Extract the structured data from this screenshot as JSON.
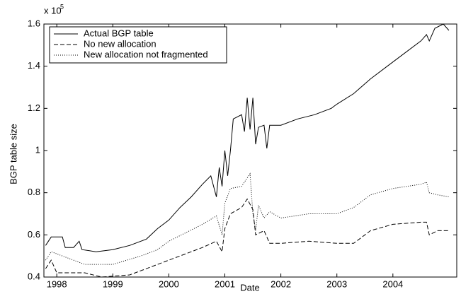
{
  "chart_data": {
    "type": "line",
    "xlabel": "Date",
    "ylabel": "BGP table size",
    "y_multiplier": "x 10",
    "y_multiplier_exponent": "5",
    "xlim": [
      1997.77,
      2005.14
    ],
    "ylim": [
      0.4,
      1.6
    ],
    "xticks": [
      1998,
      1999,
      2000,
      2001,
      2002,
      2003,
      2004
    ],
    "yticks": [
      0.4,
      0.6,
      0.8,
      1,
      1.2,
      1.4,
      1.6
    ],
    "legend": "upper left",
    "series": [
      {
        "name": "Actual BGP table",
        "color": "#000000",
        "linestyle": "solid",
        "x": [
          1997.8,
          1997.9,
          1998.1,
          1998.15,
          1998.3,
          1998.4,
          1998.45,
          1998.7,
          1999.0,
          1999.3,
          1999.6,
          1999.8,
          2000.0,
          2000.2,
          2000.4,
          2000.6,
          2000.75,
          2000.85,
          2000.9,
          2000.95,
          2001.0,
          2001.05,
          2001.1,
          2001.15,
          2001.3,
          2001.35,
          2001.4,
          2001.45,
          2001.5,
          2001.55,
          2001.6,
          2001.7,
          2001.75,
          2001.8,
          2002.0,
          2002.3,
          2002.6,
          2002.9,
          2003.0,
          2003.3,
          2003.6,
          2003.9,
          2004.2,
          2004.5,
          2004.6,
          2004.65,
          2004.75,
          2004.9,
          2005.0
        ],
        "values": [
          0.55,
          0.59,
          0.59,
          0.54,
          0.54,
          0.57,
          0.53,
          0.52,
          0.53,
          0.55,
          0.58,
          0.63,
          0.67,
          0.73,
          0.78,
          0.84,
          0.88,
          0.78,
          0.92,
          0.83,
          1.0,
          0.88,
          1.0,
          1.15,
          1.17,
          1.09,
          1.25,
          1.1,
          1.25,
          1.03,
          1.11,
          1.12,
          1.01,
          1.12,
          1.12,
          1.15,
          1.17,
          1.2,
          1.22,
          1.27,
          1.34,
          1.4,
          1.46,
          1.52,
          1.55,
          1.52,
          1.58,
          1.6,
          1.57
        ]
      },
      {
        "name": "No new allocation",
        "color": "#000000",
        "linestyle": "dashed",
        "x": [
          1997.8,
          1997.9,
          1998.0,
          1998.3,
          1998.5,
          1998.8,
          1999.3,
          1999.7,
          2000.0,
          2000.3,
          2000.6,
          2000.85,
          2000.95,
          2001.0,
          2001.1,
          2001.3,
          2001.4,
          2001.5,
          2001.55,
          2001.7,
          2001.8,
          2002.0,
          2002.5,
          2003.0,
          2003.3,
          2003.6,
          2004.0,
          2004.5,
          2004.6,
          2004.65,
          2004.8,
          2005.0
        ],
        "values": [
          0.44,
          0.48,
          0.42,
          0.42,
          0.42,
          0.4,
          0.41,
          0.45,
          0.48,
          0.51,
          0.54,
          0.57,
          0.52,
          0.63,
          0.7,
          0.73,
          0.77,
          0.72,
          0.6,
          0.62,
          0.56,
          0.56,
          0.57,
          0.56,
          0.56,
          0.62,
          0.65,
          0.66,
          0.66,
          0.6,
          0.62,
          0.62
        ]
      },
      {
        "name": "New allocation not fragmented",
        "color": "#000000",
        "linestyle": "dotted",
        "x": [
          1997.8,
          1997.9,
          1998.1,
          1998.5,
          1999.0,
          1999.5,
          1999.8,
          2000.0,
          2000.3,
          2000.6,
          2000.85,
          2000.95,
          2001.0,
          2001.1,
          2001.3,
          2001.45,
          2001.5,
          2001.55,
          2001.6,
          2001.7,
          2001.8,
          2002.0,
          2002.5,
          2003.0,
          2003.3,
          2003.6,
          2004.0,
          2004.5,
          2004.6,
          2004.65,
          2004.8,
          2005.0
        ],
        "values": [
          0.48,
          0.52,
          0.5,
          0.46,
          0.46,
          0.5,
          0.53,
          0.57,
          0.61,
          0.65,
          0.69,
          0.6,
          0.75,
          0.82,
          0.83,
          0.89,
          0.7,
          0.62,
          0.74,
          0.68,
          0.71,
          0.68,
          0.7,
          0.7,
          0.73,
          0.79,
          0.82,
          0.84,
          0.85,
          0.8,
          0.79,
          0.78
        ]
      }
    ]
  }
}
